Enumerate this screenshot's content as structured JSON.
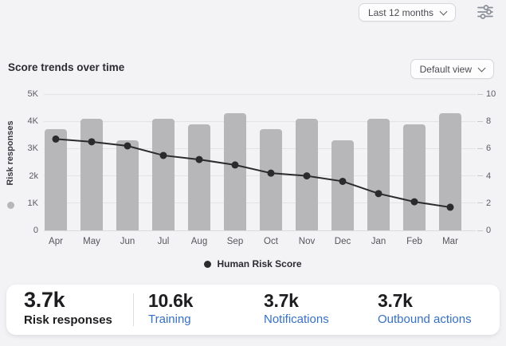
{
  "header": {
    "period_dropdown": "Last 12 months",
    "view_dropdown": "Default view",
    "filters_icon": "sliders-icon"
  },
  "section": {
    "title": "Score trends over time"
  },
  "chart_data": {
    "type": "bar",
    "title": "Score trends over time",
    "categories": [
      "Apr",
      "May",
      "Jun",
      "Jul",
      "Aug",
      "Sep",
      "Oct",
      "Nov",
      "Dec",
      "Jan",
      "Feb",
      "Mar"
    ],
    "series": [
      {
        "name": "Risk responses",
        "type": "bar",
        "axis": "left",
        "color": "#b7b7b9",
        "values": [
          3700,
          4100,
          3300,
          4100,
          3900,
          4300,
          3700,
          4100,
          3300,
          4100,
          3900,
          4300
        ]
      },
      {
        "name": "Human Risk Score",
        "type": "line",
        "axis": "right",
        "color": "#2b2b2e",
        "values": [
          6.7,
          6.5,
          6.2,
          5.5,
          5.2,
          4.8,
          4.2,
          4.0,
          3.6,
          2.7,
          2.1,
          1.7
        ]
      }
    ],
    "left_axis": {
      "label": "Risk responses",
      "ticks": [
        "0",
        "1K",
        "2k",
        "3K",
        "4K",
        "5K"
      ],
      "min": 0,
      "max": 5000
    },
    "right_axis": {
      "ticks": [
        "0",
        "2",
        "4",
        "6",
        "8",
        "10"
      ],
      "min": 0,
      "max": 10
    },
    "legend": {
      "position": "bottom-center",
      "entries": [
        "Human Risk Score"
      ]
    },
    "grid": true
  },
  "stats": {
    "items": [
      {
        "value": "3.7k",
        "label": "Risk responses"
      },
      {
        "value": "10.6k",
        "label": "Training"
      },
      {
        "value": "3.7k",
        "label": "Notifications"
      },
      {
        "value": "3.7k",
        "label": "Outbound actions"
      }
    ]
  },
  "colors": {
    "background": "#f3f3f5",
    "bar": "#b7b7b9",
    "line": "#2b2b2e",
    "accent_blue": "#3671c4",
    "card": "#ffffff"
  }
}
